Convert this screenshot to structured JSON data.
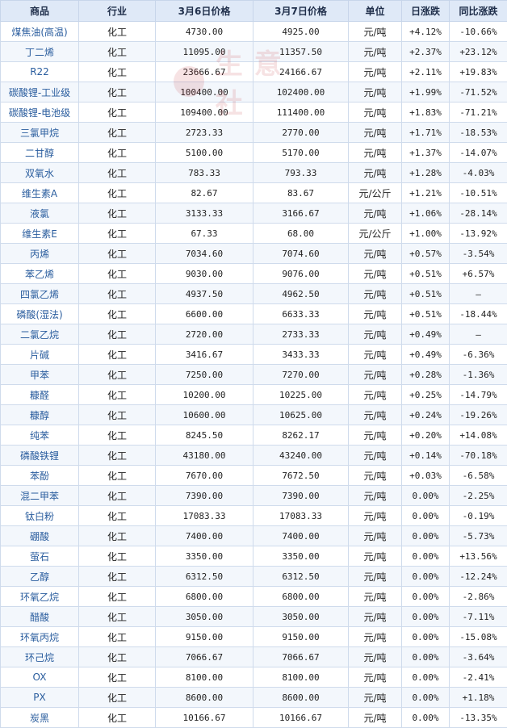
{
  "headers": [
    "商品",
    "行业",
    "3月6日价格",
    "3月7日价格",
    "单位",
    "日涨跌",
    "同比涨跌"
  ],
  "colors": {
    "up": "#e2261b",
    "down": "#1f8a2e",
    "header_bg": "#dfe9f7",
    "link": "#2a5d9e"
  },
  "watermark": "生意社",
  "rows": [
    {
      "name": "煤焦油(高温)",
      "industry": "化工",
      "p1": "4730.00",
      "p2": "4925.00",
      "unit": "元/吨",
      "day": "+4.12%",
      "yoy": "-10.66%"
    },
    {
      "name": "丁二烯",
      "industry": "化工",
      "p1": "11095.00",
      "p2": "11357.50",
      "unit": "元/吨",
      "day": "+2.37%",
      "yoy": "+23.12%"
    },
    {
      "name": "R22",
      "industry": "化工",
      "p1": "23666.67",
      "p2": "24166.67",
      "unit": "元/吨",
      "day": "+2.11%",
      "yoy": "+19.83%"
    },
    {
      "name": "碳酸锂-工业级",
      "industry": "化工",
      "p1": "100400.00",
      "p2": "102400.00",
      "unit": "元/吨",
      "day": "+1.99%",
      "yoy": "-71.52%"
    },
    {
      "name": "碳酸锂-电池级",
      "industry": "化工",
      "p1": "109400.00",
      "p2": "111400.00",
      "unit": "元/吨",
      "day": "+1.83%",
      "yoy": "-71.21%"
    },
    {
      "name": "三氯甲烷",
      "industry": "化工",
      "p1": "2723.33",
      "p2": "2770.00",
      "unit": "元/吨",
      "day": "+1.71%",
      "yoy": "-18.53%"
    },
    {
      "name": "二甘醇",
      "industry": "化工",
      "p1": "5100.00",
      "p2": "5170.00",
      "unit": "元/吨",
      "day": "+1.37%",
      "yoy": "-14.07%"
    },
    {
      "name": "双氧水",
      "industry": "化工",
      "p1": "783.33",
      "p2": "793.33",
      "unit": "元/吨",
      "day": "+1.28%",
      "yoy": "-4.03%"
    },
    {
      "name": "维生素A",
      "industry": "化工",
      "p1": "82.67",
      "p2": "83.67",
      "unit": "元/公斤",
      "day": "+1.21%",
      "yoy": "-10.51%"
    },
    {
      "name": "液氯",
      "industry": "化工",
      "p1": "3133.33",
      "p2": "3166.67",
      "unit": "元/吨",
      "day": "+1.06%",
      "yoy": "-28.14%"
    },
    {
      "name": "维生素E",
      "industry": "化工",
      "p1": "67.33",
      "p2": "68.00",
      "unit": "元/公斤",
      "day": "+1.00%",
      "yoy": "-13.92%"
    },
    {
      "name": "丙烯",
      "industry": "化工",
      "p1": "7034.60",
      "p2": "7074.60",
      "unit": "元/吨",
      "day": "+0.57%",
      "yoy": "-3.54%"
    },
    {
      "name": "苯乙烯",
      "industry": "化工",
      "p1": "9030.00",
      "p2": "9076.00",
      "unit": "元/吨",
      "day": "+0.51%",
      "yoy": "+6.57%"
    },
    {
      "name": "四氯乙烯",
      "industry": "化工",
      "p1": "4937.50",
      "p2": "4962.50",
      "unit": "元/吨",
      "day": "+0.51%",
      "yoy": "—"
    },
    {
      "name": "磷酸(湿法)",
      "industry": "化工",
      "p1": "6600.00",
      "p2": "6633.33",
      "unit": "元/吨",
      "day": "+0.51%",
      "yoy": "-18.44%"
    },
    {
      "name": "二氯乙烷",
      "industry": "化工",
      "p1": "2720.00",
      "p2": "2733.33",
      "unit": "元/吨",
      "day": "+0.49%",
      "yoy": "—"
    },
    {
      "name": "片碱",
      "industry": "化工",
      "p1": "3416.67",
      "p2": "3433.33",
      "unit": "元/吨",
      "day": "+0.49%",
      "yoy": "-6.36%"
    },
    {
      "name": "甲苯",
      "industry": "化工",
      "p1": "7250.00",
      "p2": "7270.00",
      "unit": "元/吨",
      "day": "+0.28%",
      "yoy": "-1.36%"
    },
    {
      "name": "糠醛",
      "industry": "化工",
      "p1": "10200.00",
      "p2": "10225.00",
      "unit": "元/吨",
      "day": "+0.25%",
      "yoy": "-14.79%"
    },
    {
      "name": "糠醇",
      "industry": "化工",
      "p1": "10600.00",
      "p2": "10625.00",
      "unit": "元/吨",
      "day": "+0.24%",
      "yoy": "-19.26%"
    },
    {
      "name": "纯苯",
      "industry": "化工",
      "p1": "8245.50",
      "p2": "8262.17",
      "unit": "元/吨",
      "day": "+0.20%",
      "yoy": "+14.08%"
    },
    {
      "name": "磷酸铁锂",
      "industry": "化工",
      "p1": "43180.00",
      "p2": "43240.00",
      "unit": "元/吨",
      "day": "+0.14%",
      "yoy": "-70.18%"
    },
    {
      "name": "苯酚",
      "industry": "化工",
      "p1": "7670.00",
      "p2": "7672.50",
      "unit": "元/吨",
      "day": "+0.03%",
      "yoy": "-6.58%"
    },
    {
      "name": "混二甲苯",
      "industry": "化工",
      "p1": "7390.00",
      "p2": "7390.00",
      "unit": "元/吨",
      "day": "0.00%",
      "yoy": "-2.25%"
    },
    {
      "name": "钛白粉",
      "industry": "化工",
      "p1": "17083.33",
      "p2": "17083.33",
      "unit": "元/吨",
      "day": "0.00%",
      "yoy": "-0.19%"
    },
    {
      "name": "硼酸",
      "industry": "化工",
      "p1": "7400.00",
      "p2": "7400.00",
      "unit": "元/吨",
      "day": "0.00%",
      "yoy": "-5.73%"
    },
    {
      "name": "萤石",
      "industry": "化工",
      "p1": "3350.00",
      "p2": "3350.00",
      "unit": "元/吨",
      "day": "0.00%",
      "yoy": "+13.56%"
    },
    {
      "name": "乙醇",
      "industry": "化工",
      "p1": "6312.50",
      "p2": "6312.50",
      "unit": "元/吨",
      "day": "0.00%",
      "yoy": "-12.24%"
    },
    {
      "name": "环氧乙烷",
      "industry": "化工",
      "p1": "6800.00",
      "p2": "6800.00",
      "unit": "元/吨",
      "day": "0.00%",
      "yoy": "-2.86%"
    },
    {
      "name": "醋酸",
      "industry": "化工",
      "p1": "3050.00",
      "p2": "3050.00",
      "unit": "元/吨",
      "day": "0.00%",
      "yoy": "-7.11%"
    },
    {
      "name": "环氧丙烷",
      "industry": "化工",
      "p1": "9150.00",
      "p2": "9150.00",
      "unit": "元/吨",
      "day": "0.00%",
      "yoy": "-15.08%"
    },
    {
      "name": "环己烷",
      "industry": "化工",
      "p1": "7066.67",
      "p2": "7066.67",
      "unit": "元/吨",
      "day": "0.00%",
      "yoy": "-3.64%"
    },
    {
      "name": "OX",
      "industry": "化工",
      "p1": "8100.00",
      "p2": "8100.00",
      "unit": "元/吨",
      "day": "0.00%",
      "yoy": "-2.41%"
    },
    {
      "name": "PX",
      "industry": "化工",
      "p1": "8600.00",
      "p2": "8600.00",
      "unit": "元/吨",
      "day": "0.00%",
      "yoy": "+1.18%"
    },
    {
      "name": "炭黑",
      "industry": "化工",
      "p1": "10166.67",
      "p2": "10166.67",
      "unit": "元/吨",
      "day": "0.00%",
      "yoy": "-13.35%"
    }
  ]
}
